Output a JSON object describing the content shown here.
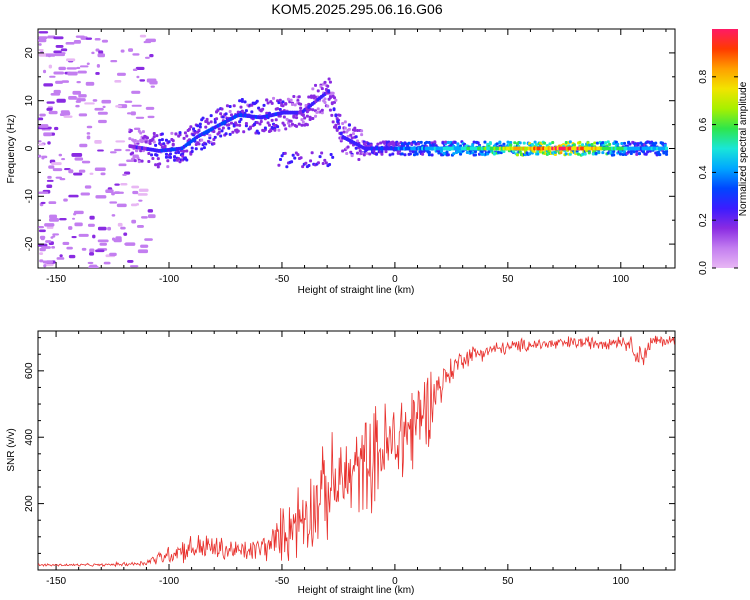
{
  "figure_title": "KOM5.2025.295.06.16.G06",
  "colors": {
    "snr_line": "#e8302c",
    "colormap": [
      "#e8b7f4",
      "#c37ef0",
      "#8a2be2",
      "#3b1cff",
      "#0046ff",
      "#00a7ff",
      "#19e6d8",
      "#2ee64b",
      "#a7f000",
      "#f2e400",
      "#ffa000",
      "#ff3a00",
      "#ff1a66"
    ]
  },
  "chart_data": [
    {
      "type": "heatmap",
      "title": "KOM5.2025.295.06.16.G06",
      "xlabel": "Height of straight line (km)",
      "ylabel": "Frequency (Hz)",
      "xlim": [
        -158,
        124
      ],
      "ylim": [
        -25,
        25
      ],
      "xticks": [
        -150,
        -100,
        -50,
        0,
        50,
        100
      ],
      "yticks": [
        -20,
        -10,
        0,
        10,
        20
      ],
      "colorbar": {
        "label": "Normalized spectral amplitude",
        "range": [
          0.0,
          1.0
        ],
        "ticks": [
          0.0,
          0.2,
          0.4,
          0.6,
          0.8
        ]
      },
      "ridge": [
        {
          "h": -118,
          "f": 0.5,
          "amp": 0.16
        },
        {
          "h": -105,
          "f": -0.5,
          "amp": 0.28
        },
        {
          "h": -95,
          "f": 0,
          "amp": 0.32
        },
        {
          "h": -88,
          "f": 2.5,
          "amp": 0.3
        },
        {
          "h": -80,
          "f": 4.5,
          "amp": 0.3
        },
        {
          "h": -70,
          "f": 7,
          "amp": 0.3
        },
        {
          "h": -60,
          "f": 6.5,
          "amp": 0.28
        },
        {
          "h": -50,
          "f": 7.5,
          "amp": 0.26
        },
        {
          "h": -42,
          "f": 7.5,
          "amp": 0.22
        },
        {
          "h": -30,
          "f": 12,
          "amp": 0.2
        },
        {
          "h": -24,
          "f": 2.5,
          "amp": 0.24
        },
        {
          "h": -14,
          "f": 0,
          "amp": 0.26
        },
        {
          "h": 0,
          "f": 0,
          "amp": 0.34
        },
        {
          "h": 20,
          "f": 0,
          "amp": 0.45
        },
        {
          "h": 40,
          "f": 0,
          "amp": 0.6
        },
        {
          "h": 60,
          "f": 0,
          "amp": 0.8
        },
        {
          "h": 75,
          "f": 0,
          "amp": 0.95
        },
        {
          "h": 90,
          "f": 0,
          "amp": 0.7
        },
        {
          "h": 105,
          "f": 0,
          "amp": 0.4
        },
        {
          "h": 120,
          "f": 0,
          "amp": 0.45
        }
      ]
    },
    {
      "type": "line",
      "xlabel": "Height of straight line (km)",
      "ylabel": "SNR (v/v)",
      "xlim": [
        -158,
        124
      ],
      "ylim": [
        0,
        720
      ],
      "xticks": [
        -150,
        -100,
        -50,
        0,
        50,
        100
      ],
      "yticks": [
        200,
        400,
        600
      ],
      "series": [
        {
          "name": "SNR",
          "x": [
            -158,
            -130,
            -112,
            -105,
            -95,
            -85,
            -75,
            -65,
            -55,
            -45,
            -35,
            -28,
            -20,
            -10,
            0,
            5,
            8,
            12,
            18,
            25,
            30,
            40,
            50,
            60,
            70,
            80,
            90,
            100,
            105,
            108,
            115,
            124
          ],
          "y": [
            15,
            15,
            20,
            35,
            60,
            70,
            60,
            55,
            75,
            140,
            200,
            250,
            280,
            340,
            380,
            420,
            430,
            470,
            540,
            600,
            640,
            660,
            670,
            680,
            680,
            685,
            685,
            690,
            680,
            640,
            690,
            690
          ],
          "spread": [
            5,
            5,
            10,
            25,
            45,
            55,
            45,
            40,
            60,
            140,
            160,
            180,
            170,
            180,
            190,
            220,
            200,
            180,
            100,
            50,
            40,
            30,
            25,
            25,
            25,
            25,
            25,
            25,
            30,
            60,
            25,
            20
          ]
        }
      ]
    }
  ]
}
